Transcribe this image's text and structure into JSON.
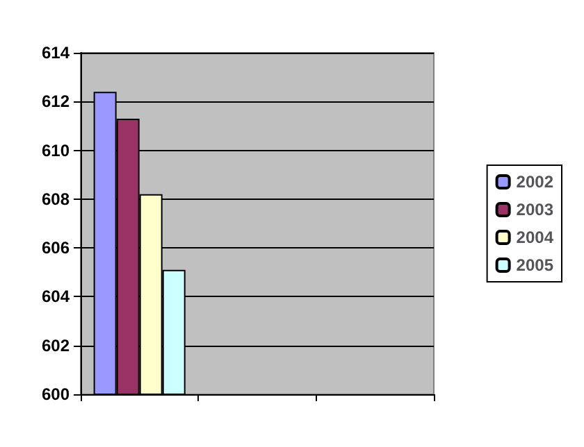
{
  "chart_data": {
    "type": "bar",
    "categories": [
      null,
      null,
      null
    ],
    "series": [
      {
        "name": "2002",
        "color": "#9999ff",
        "values": [
          612.4,
          null,
          null
        ]
      },
      {
        "name": "2003",
        "color": "#993366",
        "values": [
          611.3,
          null,
          null
        ]
      },
      {
        "name": "2004",
        "color": "#ffffcc",
        "values": [
          608.2,
          null,
          null
        ]
      },
      {
        "name": "2005",
        "color": "#ccffff",
        "values": [
          605.1,
          null,
          null
        ]
      }
    ],
    "ylim": [
      600,
      614
    ],
    "yticks": [
      600,
      602,
      604,
      606,
      608,
      610,
      612,
      614
    ],
    "grid": "y",
    "legend": "right"
  }
}
